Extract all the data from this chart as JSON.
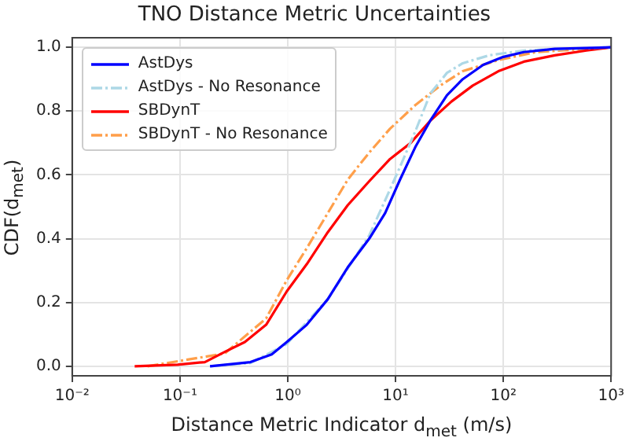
{
  "chart_data": {
    "type": "line",
    "title": "TNO Distance Metric Uncertainties",
    "xlabel": "Distance Metric Indicator d$_{met}$ (m/s)",
    "ylabel": "CDF(d$_{met}$)",
    "log": "x",
    "grid": true,
    "legend": "top left",
    "marker": "none",
    "xlim": [
      0.01,
      1000
    ],
    "xticks": [
      {
        "value": 0.01,
        "label": "10⁻²"
      },
      {
        "value": 0.1,
        "label": "10⁻¹"
      },
      {
        "value": 1,
        "label": "10⁰"
      },
      {
        "value": 10,
        "label": "10¹"
      },
      {
        "value": 100,
        "label": "10²"
      },
      {
        "value": 1000,
        "label": "10³"
      }
    ],
    "ylim": [
      -0.03,
      1.03
    ],
    "yticks": [
      {
        "value": 0,
        "label": "0.0"
      },
      {
        "value": 0.2,
        "label": "0.2"
      },
      {
        "value": 0.4,
        "label": "0.4"
      },
      {
        "value": 0.6,
        "label": "0.6"
      },
      {
        "value": 0.8,
        "label": "0.8"
      },
      {
        "value": 1,
        "label": "1.0"
      }
    ],
    "series": [
      {
        "name": "AstDys",
        "color": "#0000ff",
        "line_style": "solid",
        "x": [
          0.19,
          0.45,
          0.71,
          0.98,
          1.5,
          2.35,
          3.6,
          5.7,
          8,
          11,
          15.4,
          21,
          30,
          42,
          65,
          100,
          155,
          300,
          1000
        ],
        "values": [
          0,
          0.013,
          0.037,
          0.076,
          0.13,
          0.21,
          0.31,
          0.4,
          0.48,
          0.585,
          0.69,
          0.77,
          0.85,
          0.9,
          0.945,
          0.97,
          0.985,
          0.995,
          1
        ]
      },
      {
        "name": "AstDys - No Resonance",
        "color": "#add8e6",
        "line_style": "dashed",
        "x": [
          0.19,
          0.45,
          0.98,
          2.35,
          5.7,
          8,
          11,
          15.4,
          21,
          30,
          42,
          74,
          155,
          1000
        ],
        "values": [
          0,
          0.01,
          0.07,
          0.21,
          0.41,
          0.52,
          0.625,
          0.74,
          0.855,
          0.92,
          0.95,
          0.975,
          0.99,
          1
        ]
      },
      {
        "name": "SBDynT",
        "color": "#ff0000",
        "line_style": "solid",
        "x": [
          0.038,
          0.095,
          0.17,
          0.26,
          0.4,
          0.63,
          0.98,
          1.5,
          2.35,
          3.6,
          5.7,
          8.9,
          13.8,
          21,
          33,
          52,
          90,
          155,
          300,
          590,
          1000
        ],
        "values": [
          0,
          0.005,
          0.013,
          0.045,
          0.076,
          0.13,
          0.235,
          0.32,
          0.42,
          0.505,
          0.58,
          0.65,
          0.7,
          0.77,
          0.83,
          0.88,
          0.925,
          0.955,
          0.975,
          0.99,
          1
        ]
      },
      {
        "name": "SBDynT - No Resonance",
        "color": "#ff9f4a",
        "line_style": "dashed",
        "x": [
          0.05,
          0.26,
          0.63,
          0.98,
          1.5,
          2.35,
          3.6,
          5.7,
          8.9,
          15.4,
          26,
          42,
          90,
          200,
          1000
        ],
        "values": [
          0,
          0.04,
          0.15,
          0.27,
          0.37,
          0.48,
          0.585,
          0.67,
          0.745,
          0.82,
          0.88,
          0.925,
          0.96,
          0.985,
          1
        ]
      }
    ]
  }
}
